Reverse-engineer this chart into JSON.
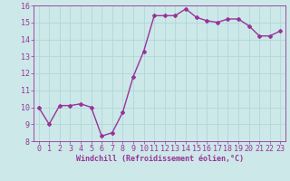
{
  "x": [
    0,
    1,
    2,
    3,
    4,
    5,
    6,
    7,
    8,
    9,
    10,
    11,
    12,
    13,
    14,
    15,
    16,
    17,
    18,
    19,
    20,
    21,
    22,
    23
  ],
  "y": [
    10.0,
    9.0,
    10.1,
    10.1,
    10.2,
    10.0,
    8.3,
    8.5,
    9.7,
    11.8,
    13.3,
    15.4,
    15.4,
    15.4,
    15.8,
    15.3,
    15.1,
    15.0,
    15.2,
    15.2,
    14.8,
    14.2,
    14.2,
    14.5
  ],
  "line_color": "#993399",
  "marker": "D",
  "marker_size": 2,
  "xlabel": "Windchill (Refroidissement éolien,°C)",
  "xlabel_fontsize": 6,
  "ylim": [
    8,
    16
  ],
  "xlim": [
    -0.5,
    23.5
  ],
  "yticks": [
    8,
    9,
    10,
    11,
    12,
    13,
    14,
    15,
    16
  ],
  "xticks": [
    0,
    1,
    2,
    3,
    4,
    5,
    6,
    7,
    8,
    9,
    10,
    11,
    12,
    13,
    14,
    15,
    16,
    17,
    18,
    19,
    20,
    21,
    22,
    23
  ],
  "bg_color": "#cce8e8",
  "grid_color": "#b0d8d8",
  "tick_color": "#993399",
  "label_color": "#993399",
  "tick_fontsize": 6,
  "line_width": 1.0
}
